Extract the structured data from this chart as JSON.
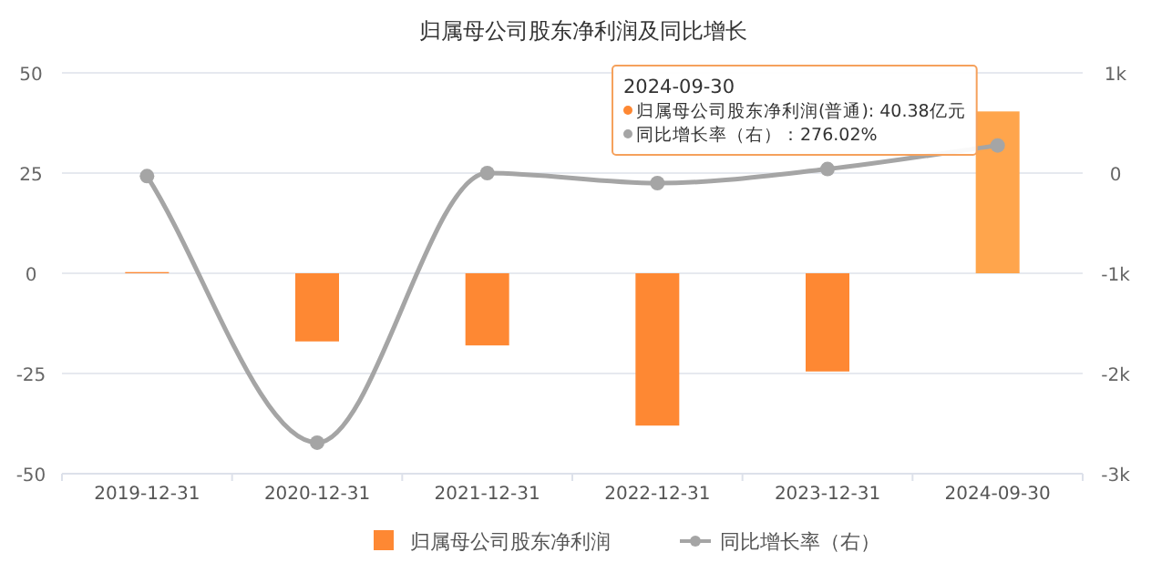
{
  "chart_data": {
    "type": "bar",
    "title": "归属母公司股东净利润及同比增长",
    "categories": [
      "2019-12-31",
      "2020-12-31",
      "2021-12-31",
      "2022-12-31",
      "2023-12-31",
      "2024-09-30"
    ],
    "series": [
      {
        "name": "归属母公司股东净利润",
        "color": "#fe8833",
        "colors": [
          "#fe8833",
          "#fe8833",
          "#fe8833",
          "#fe8833",
          "#fe8833",
          "#ffa54c"
        ],
        "values": [
          0.3,
          -17,
          -18,
          -38,
          -24.5,
          40.38
        ]
      },
      {
        "name": "同比增长率（右）",
        "type": "line",
        "axis": "y2",
        "color": "#a5a5a5",
        "marker": "circle",
        "values": [
          -30,
          -2690,
          0,
          -100,
          40,
          276.02
        ]
      }
    ],
    "ylim": [
      -50,
      50
    ],
    "yticks": [
      -50,
      -25,
      0,
      25,
      50
    ],
    "y2lim": [
      -3000,
      1000
    ],
    "y2ticks": [
      {
        "value": -3000,
        "label": "-3k"
      },
      {
        "value": -2000,
        "label": "-2k"
      },
      {
        "value": -1000,
        "label": "-1k"
      },
      {
        "value": 0,
        "label": "0"
      },
      {
        "value": 1000,
        "label": "1k"
      }
    ],
    "grid": "y",
    "legend": "bottom",
    "annotations": [
      "2024-09-30",
      "归属母公司股东净利润(普通): 40.38亿元",
      "同比增长率（右）：276.02%"
    ]
  }
}
